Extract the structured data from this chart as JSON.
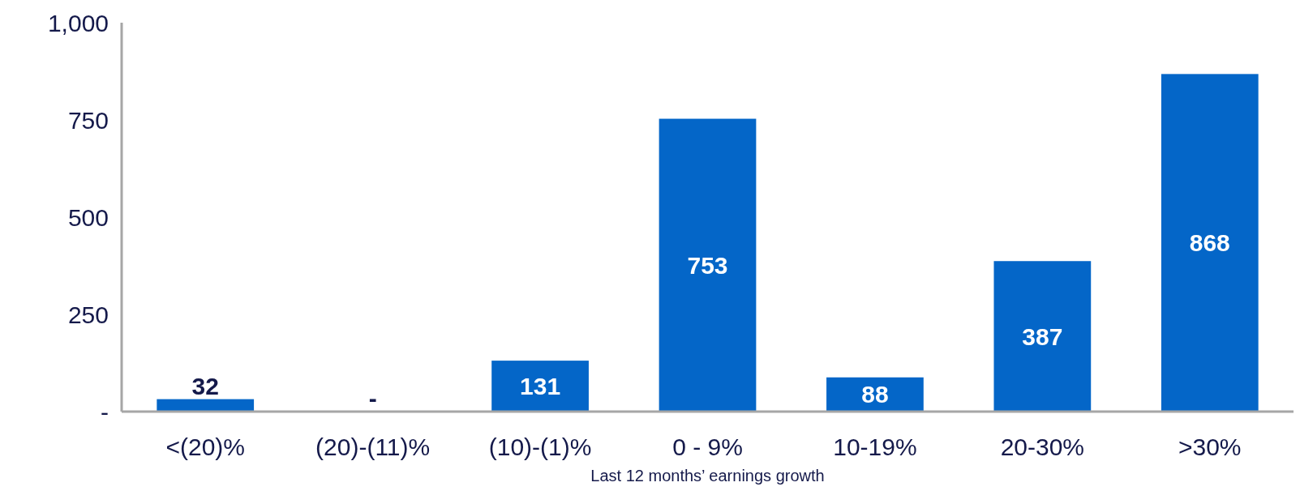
{
  "chart_data": {
    "type": "bar",
    "xlabel": "Last 12 months’ earnings growth",
    "categories": [
      "<(20)%",
      "(20)-(11)%",
      "(10)-(1)%",
      "0 - 9%",
      "10-19%",
      "20-30%",
      ">30%"
    ],
    "values": [
      32,
      0,
      131,
      753,
      88,
      387,
      868
    ],
    "value_labels": [
      "32",
      "-",
      "131",
      "753",
      "88",
      "387",
      "868"
    ],
    "color": "#0466c8",
    "ylim": [
      0,
      1000
    ],
    "yticks": [
      {
        "value": 0,
        "label": "-"
      },
      250,
      500,
      750,
      {
        "value": 1000,
        "label": "1,000"
      }
    ],
    "grid": false
  }
}
